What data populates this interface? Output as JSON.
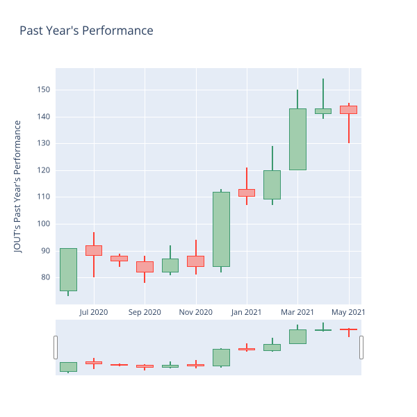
{
  "title": "Past Year's Performance",
  "ylabel": "JOUT's Past Year's Performance",
  "main_chart": {
    "type": "candlestick",
    "background_color": "#e5ecf6",
    "grid_color": "#ffffff",
    "ylim": [
      70,
      158
    ],
    "xdomain": [
      0,
      12
    ],
    "yticks": [
      80,
      90,
      100,
      110,
      120,
      130,
      140,
      150
    ],
    "xticks": [
      {
        "pos": 1.5,
        "label": "Jul 2020"
      },
      {
        "pos": 3.5,
        "label": "Sep 2020"
      },
      {
        "pos": 5.5,
        "label": "Nov 2020"
      },
      {
        "pos": 7.5,
        "label": "Jan 2021"
      },
      {
        "pos": 9.5,
        "label": "Mar 2021"
      },
      {
        "pos": 11.5,
        "label": "May 2021"
      }
    ],
    "up_color": "#a1cdad",
    "up_border": "#3d9970",
    "down_color": "#f4a3a0",
    "down_border": "#ff4136",
    "candle_width": 0.68,
    "wick_width": 2,
    "candles": [
      {
        "x": 0.5,
        "open": 75,
        "high": 91,
        "low": 73,
        "close": 91,
        "dir": "up"
      },
      {
        "x": 1.5,
        "open": 92,
        "high": 97,
        "low": 80,
        "close": 88,
        "dir": "down"
      },
      {
        "x": 2.5,
        "open": 88,
        "high": 89,
        "low": 84,
        "close": 86,
        "dir": "down"
      },
      {
        "x": 3.5,
        "open": 86,
        "high": 88,
        "low": 78,
        "close": 82,
        "dir": "down"
      },
      {
        "x": 4.5,
        "open": 82,
        "high": 92,
        "low": 81,
        "close": 87,
        "dir": "up"
      },
      {
        "x": 5.5,
        "open": 88,
        "high": 94,
        "low": 81,
        "close": 84,
        "dir": "down"
      },
      {
        "x": 6.5,
        "open": 84,
        "high": 113,
        "low": 82,
        "close": 112,
        "dir": "up"
      },
      {
        "x": 7.5,
        "open": 113,
        "high": 121,
        "low": 107,
        "close": 110,
        "dir": "down"
      },
      {
        "x": 8.5,
        "open": 109,
        "high": 129,
        "low": 107,
        "close": 120,
        "dir": "up"
      },
      {
        "x": 9.5,
        "open": 120,
        "high": 150,
        "low": 120,
        "close": 143,
        "dir": "up"
      },
      {
        "x": 10.5,
        "open": 141,
        "high": 154,
        "low": 139,
        "close": 143,
        "dir": "up"
      },
      {
        "x": 11.5,
        "open": 144,
        "high": 145,
        "low": 130,
        "close": 141,
        "dir": "down"
      }
    ]
  },
  "range_chart": {
    "type": "candlestick",
    "background_color": "#e5ecf6",
    "ylim": [
      70,
      158
    ],
    "candle_width": 0.68
  },
  "title_fontsize": 17,
  "label_fontsize": 13,
  "tick_fontsize": 11,
  "tick_color": "#2a3f5f"
}
